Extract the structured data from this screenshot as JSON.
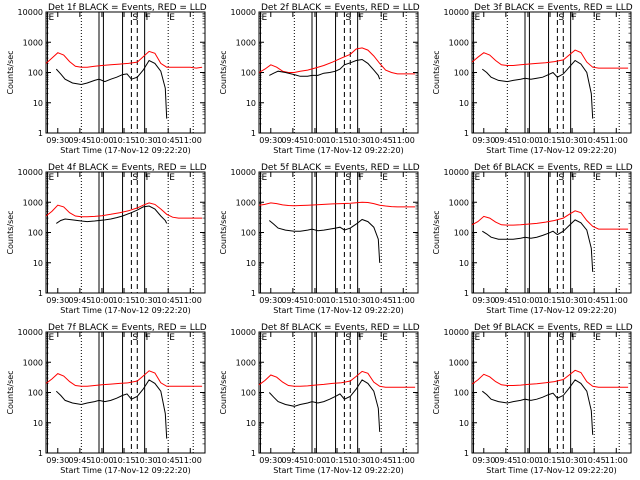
{
  "chart_data": {
    "type": "line",
    "ylabel": "Counts/sec",
    "xlabel": "Start Time (17-Nov-12 09:22:20)",
    "x_ticks": [
      "09:30",
      "09:45",
      "10:00",
      "10:15",
      "10:30",
      "10:45",
      "11:00"
    ],
    "y_ticks": [
      "1",
      "10",
      "100",
      "1000",
      "10000"
    ],
    "y_scale": "log",
    "ylim": [
      1,
      10000
    ],
    "xlim_minutes": [
      22,
      130
    ],
    "series_colors": {
      "events": "#000000",
      "lld": "#ff0000"
    },
    "markers": [
      {
        "label": "E",
        "t": 23,
        "style": "solid"
      },
      {
        "label": "",
        "t": 46,
        "style": "dotted"
      },
      {
        "label": "",
        "t": 58,
        "style": "solid"
      },
      {
        "label": "",
        "t": 61,
        "style": "solid"
      },
      {
        "label": "",
        "t": 74,
        "style": "solid"
      },
      {
        "label": "S",
        "t": 80,
        "style": "dashed"
      },
      {
        "label": "",
        "t": 84,
        "style": "dashed"
      },
      {
        "label": "F",
        "t": 89,
        "style": "solid"
      },
      {
        "label": "E",
        "t": 105,
        "style": "dotted"
      },
      {
        "label": "",
        "t": 122,
        "style": "dotted"
      }
    ],
    "panels": [
      {
        "title": "Det 1f BLACK = Events, RED = LLD",
        "events": {
          "t": [
            29,
            32,
            35,
            40,
            46,
            50,
            55,
            58,
            62,
            66,
            70,
            74,
            77,
            80,
            84,
            88,
            92,
            96,
            100,
            103,
            104
          ],
          "v": [
            130,
            90,
            60,
            45,
            40,
            45,
            55,
            60,
            50,
            60,
            70,
            85,
            90,
            60,
            70,
            120,
            250,
            200,
            110,
            30,
            3
          ]
        },
        "lld": {
          "t": [
            22,
            26,
            30,
            34,
            38,
            42,
            46,
            50,
            55,
            60,
            66,
            72,
            78,
            84,
            88,
            92,
            96,
            100,
            104,
            108,
            112,
            116,
            120,
            124,
            128
          ],
          "v": [
            200,
            300,
            450,
            380,
            230,
            160,
            150,
            150,
            160,
            170,
            180,
            190,
            200,
            220,
            330,
            500,
            430,
            200,
            150,
            150,
            150,
            150,
            150,
            140,
            150
          ]
        }
      },
      {
        "title": "Det 2f BLACK = Events, RED = LLD",
        "events": {
          "t": [
            29,
            32,
            35,
            40,
            46,
            50,
            55,
            58,
            62,
            66,
            70,
            74,
            77,
            80,
            84,
            88,
            92,
            96,
            100,
            103,
            104
          ],
          "v": [
            80,
            95,
            110,
            100,
            85,
            75,
            75,
            80,
            80,
            95,
            100,
            110,
            130,
            180,
            210,
            250,
            270,
            200,
            120,
            80,
            60
          ]
        },
        "lld": {
          "t": [
            22,
            26,
            30,
            34,
            38,
            42,
            46,
            50,
            55,
            60,
            66,
            72,
            78,
            84,
            88,
            92,
            96,
            100,
            104,
            108,
            112,
            116,
            120,
            124,
            128
          ],
          "v": [
            100,
            130,
            180,
            150,
            110,
            100,
            100,
            110,
            120,
            140,
            170,
            220,
            300,
            400,
            600,
            650,
            550,
            350,
            200,
            120,
            100,
            90,
            90,
            90,
            90
          ]
        }
      },
      {
        "title": "Det 3f BLACK = Events, RED = LLD",
        "events": {
          "t": [
            29,
            32,
            35,
            40,
            46,
            50,
            55,
            58,
            62,
            66,
            70,
            74,
            77,
            80,
            84,
            88,
            92,
            96,
            100,
            103,
            104
          ],
          "v": [
            130,
            100,
            70,
            55,
            50,
            55,
            60,
            65,
            60,
            65,
            70,
            85,
            100,
            70,
            90,
            150,
            250,
            190,
            100,
            20,
            3
          ]
        },
        "lld": {
          "t": [
            22,
            26,
            30,
            34,
            38,
            42,
            46,
            50,
            55,
            60,
            66,
            72,
            78,
            84,
            88,
            92,
            96,
            100,
            104,
            108,
            112,
            116,
            120,
            124,
            128
          ],
          "v": [
            220,
            320,
            450,
            380,
            250,
            180,
            170,
            170,
            180,
            190,
            200,
            210,
            230,
            260,
            380,
            550,
            460,
            220,
            150,
            140,
            140,
            140,
            140,
            140,
            140
          ]
        }
      },
      {
        "title": "Det 4f BLACK = Events, RED = LLD",
        "events": {
          "t": [
            29,
            32,
            35,
            40,
            46,
            50,
            55,
            58,
            62,
            66,
            70,
            74,
            77,
            80,
            84,
            88,
            92,
            96,
            100,
            103,
            104
          ],
          "v": [
            200,
            250,
            280,
            260,
            240,
            230,
            240,
            250,
            260,
            280,
            310,
            350,
            400,
            450,
            550,
            700,
            750,
            600,
            350,
            250,
            200
          ]
        },
        "lld": {
          "t": [
            22,
            26,
            30,
            34,
            38,
            42,
            46,
            50,
            55,
            60,
            66,
            72,
            78,
            84,
            88,
            92,
            96,
            100,
            104,
            108,
            112,
            116,
            120,
            124,
            128
          ],
          "v": [
            350,
            500,
            800,
            700,
            450,
            350,
            330,
            330,
            340,
            360,
            400,
            450,
            520,
            650,
            800,
            950,
            850,
            600,
            400,
            320,
            300,
            300,
            300,
            300,
            300
          ]
        }
      },
      {
        "title": "Det 5f BLACK = Events, RED = LLD",
        "events": {
          "t": [
            29,
            32,
            35,
            40,
            46,
            50,
            55,
            58,
            62,
            66,
            70,
            74,
            77,
            80,
            84,
            88,
            92,
            96,
            100,
            103,
            104
          ],
          "v": [
            250,
            190,
            140,
            120,
            110,
            110,
            120,
            130,
            115,
            120,
            130,
            140,
            150,
            120,
            140,
            190,
            270,
            230,
            150,
            60,
            10
          ]
        },
        "lld": {
          "t": [
            22,
            26,
            30,
            34,
            38,
            42,
            46,
            50,
            55,
            60,
            66,
            72,
            78,
            84,
            88,
            92,
            96,
            100,
            104,
            108,
            112,
            116,
            120,
            124,
            128
          ],
          "v": [
            800,
            850,
            950,
            900,
            820,
            780,
            770,
            780,
            800,
            820,
            850,
            880,
            900,
            920,
            960,
            1000,
            980,
            900,
            800,
            750,
            720,
            700,
            700,
            700,
            700
          ]
        }
      },
      {
        "title": "Det 6f BLACK = Events, RED = LLD",
        "events": {
          "t": [
            29,
            32,
            35,
            40,
            46,
            50,
            55,
            58,
            62,
            66,
            70,
            74,
            77,
            80,
            84,
            88,
            92,
            96,
            100,
            103,
            104
          ],
          "v": [
            110,
            90,
            70,
            60,
            60,
            60,
            65,
            70,
            65,
            70,
            80,
            95,
            110,
            85,
            110,
            170,
            260,
            210,
            120,
            30,
            5
          ]
        },
        "lld": {
          "t": [
            22,
            26,
            30,
            34,
            38,
            42,
            46,
            50,
            55,
            60,
            66,
            72,
            78,
            84,
            88,
            92,
            96,
            100,
            104,
            108,
            112,
            116,
            120,
            124,
            128
          ],
          "v": [
            180,
            230,
            340,
            300,
            220,
            180,
            175,
            175,
            180,
            190,
            200,
            220,
            250,
            300,
            400,
            520,
            450,
            250,
            160,
            130,
            130,
            130,
            130,
            130,
            130
          ]
        }
      },
      {
        "title": "Det 7f BLACK = Events, RED = LLD",
        "events": {
          "t": [
            29,
            32,
            35,
            40,
            46,
            50,
            55,
            58,
            62,
            66,
            70,
            74,
            77,
            80,
            84,
            88,
            92,
            96,
            100,
            103,
            104
          ],
          "v": [
            110,
            80,
            55,
            45,
            40,
            45,
            50,
            55,
            50,
            55,
            65,
            80,
            90,
            60,
            75,
            130,
            260,
            200,
            110,
            20,
            3
          ]
        },
        "lld": {
          "t": [
            22,
            26,
            30,
            34,
            38,
            42,
            46,
            50,
            55,
            60,
            66,
            72,
            78,
            84,
            88,
            92,
            96,
            100,
            104,
            108,
            112,
            116,
            120,
            124,
            128
          ],
          "v": [
            200,
            280,
            420,
            350,
            230,
            170,
            160,
            160,
            170,
            180,
            190,
            200,
            210,
            240,
            350,
            520,
            440,
            210,
            160,
            160,
            160,
            160,
            160,
            160,
            160
          ]
        }
      },
      {
        "title": "Det 8f BLACK = Events, RED = LLD",
        "events": {
          "t": [
            29,
            32,
            35,
            40,
            46,
            50,
            55,
            58,
            62,
            66,
            70,
            74,
            77,
            80,
            84,
            88,
            92,
            96,
            100,
            103,
            104
          ],
          "v": [
            100,
            70,
            50,
            40,
            35,
            40,
            45,
            50,
            45,
            50,
            60,
            75,
            90,
            60,
            75,
            130,
            260,
            200,
            110,
            30,
            5
          ]
        },
        "lld": {
          "t": [
            22,
            26,
            30,
            34,
            38,
            42,
            46,
            50,
            55,
            60,
            66,
            72,
            78,
            84,
            88,
            92,
            96,
            100,
            104,
            108,
            112,
            116,
            120,
            124,
            128
          ],
          "v": [
            180,
            250,
            380,
            320,
            220,
            170,
            160,
            160,
            165,
            175,
            185,
            200,
            210,
            240,
            340,
            500,
            430,
            220,
            160,
            150,
            150,
            150,
            150,
            150,
            150
          ]
        }
      },
      {
        "title": "Det 9f BLACK = Events, RED = LLD",
        "events": {
          "t": [
            29,
            32,
            35,
            40,
            46,
            50,
            55,
            58,
            62,
            66,
            70,
            74,
            77,
            80,
            84,
            88,
            92,
            96,
            100,
            103,
            104
          ],
          "v": [
            110,
            85,
            60,
            50,
            45,
            50,
            55,
            60,
            55,
            60,
            70,
            85,
            95,
            65,
            80,
            140,
            260,
            200,
            110,
            25,
            4
          ]
        },
        "lld": {
          "t": [
            22,
            26,
            30,
            34,
            38,
            42,
            46,
            50,
            55,
            60,
            66,
            72,
            78,
            84,
            88,
            92,
            96,
            100,
            104,
            108,
            112,
            116,
            120,
            124,
            128
          ],
          "v": [
            190,
            260,
            400,
            330,
            230,
            180,
            170,
            170,
            175,
            185,
            195,
            210,
            230,
            270,
            380,
            540,
            460,
            230,
            160,
            150,
            150,
            150,
            150,
            150,
            150
          ]
        }
      }
    ]
  }
}
